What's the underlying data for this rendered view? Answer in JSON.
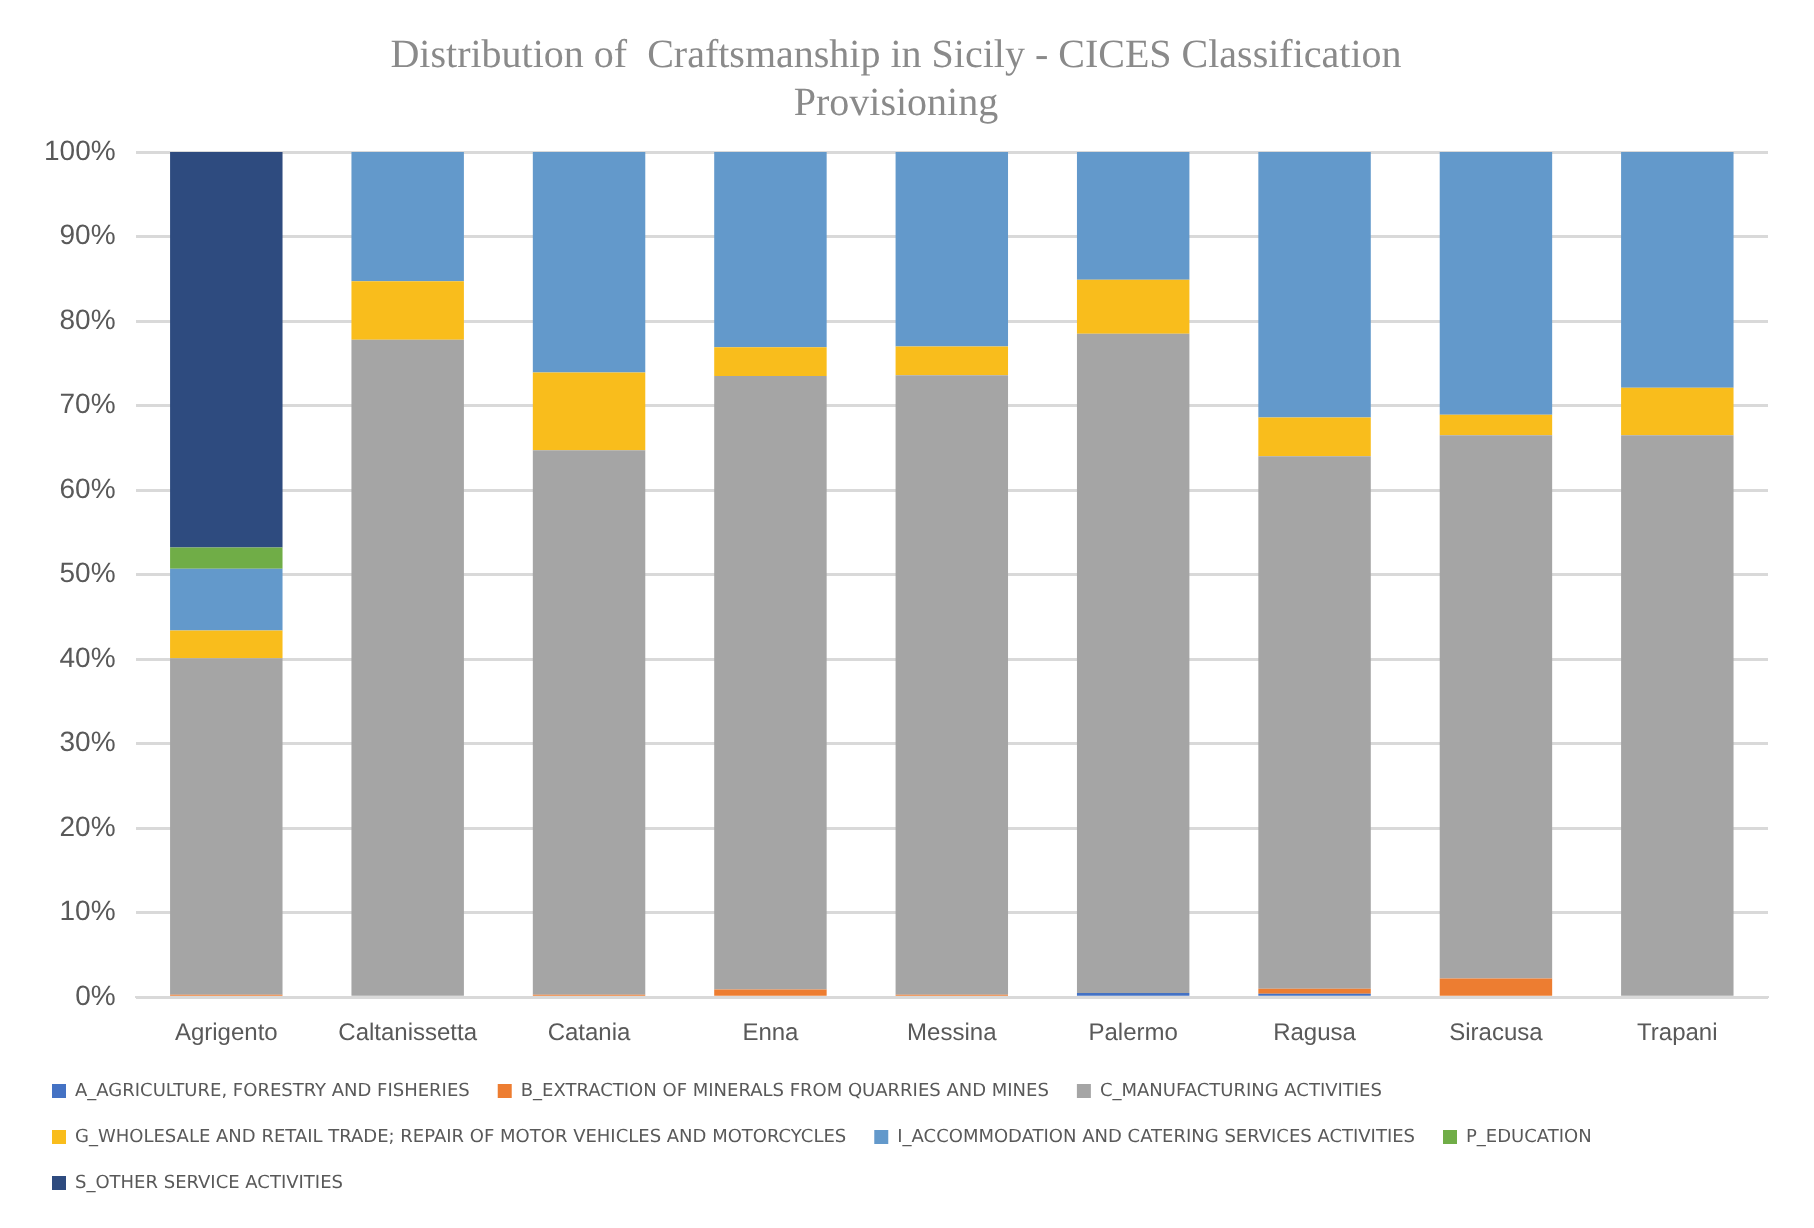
{
  "chart_data": {
    "type": "bar",
    "title": "Distribution of  Craftsmanship in Sicily - CICES Classification\nProvisioning",
    "stacked": true,
    "categories": [
      "Agrigento",
      "Caltanissetta",
      "Catania",
      "Enna",
      "Messina",
      "Palermo",
      "Ragusa",
      "Siracusa",
      "Trapani"
    ],
    "series": [
      {
        "name": "A_AGRICULTURE, FORESTRY AND FISHERIES",
        "color": "#4472c4",
        "values": [
          0,
          0,
          0,
          0,
          0,
          0.5,
          0.4,
          0,
          0
        ]
      },
      {
        "name": "B_EXTRACTION OF MINERALS FROM QUARRIES AND MINES",
        "color": "#ed7d31",
        "values": [
          0.3,
          0,
          0.3,
          0.9,
          0.3,
          0,
          0.6,
          2.2,
          0
        ]
      },
      {
        "name": "C_MANUFACTURING ACTIVITIES",
        "color": "#a5a5a5",
        "values": [
          39.8,
          77.8,
          64.4,
          72.6,
          73.3,
          78.0,
          63.0,
          64.3,
          66.5
        ]
      },
      {
        "name": "G_WHOLESALE AND RETAIL TRADE; REPAIR OF MOTOR VEHICLES AND MOTORCYCLES",
        "color": "#f9bd1c",
        "values": [
          3.3,
          6.9,
          9.2,
          3.4,
          3.4,
          6.4,
          4.6,
          2.4,
          5.6
        ]
      },
      {
        "name": "I_ACCOMMODATION AND CATERING SERVICES ACTIVITIES",
        "color": "#6399cb",
        "values": [
          7.3,
          15.3,
          26.1,
          23.1,
          23.1,
          15.1,
          31.4,
          31.1,
          27.9
        ]
      },
      {
        "name": "P_EDUCATION",
        "color": "#70ad47",
        "values": [
          2.5,
          0,
          0,
          0,
          0,
          0,
          0,
          0,
          0
        ]
      },
      {
        "name": "S_OTHER SERVICE ACTIVITIES",
        "color": "#2e4b7f",
        "values": [
          46.8,
          0,
          0,
          0,
          0,
          0,
          0,
          0,
          0
        ]
      }
    ],
    "ylim": [
      0,
      100
    ],
    "yticks": [
      {
        "value": 0,
        "label": "0%"
      },
      {
        "value": 10,
        "label": "10%"
      },
      {
        "value": 20,
        "label": "20%"
      },
      {
        "value": 30,
        "label": "30%"
      },
      {
        "value": 40,
        "label": "40%"
      },
      {
        "value": 50,
        "label": "50%"
      },
      {
        "value": 60,
        "label": "60%"
      },
      {
        "value": 70,
        "label": "70%"
      },
      {
        "value": 80,
        "label": "80%"
      },
      {
        "value": 90,
        "label": "90%"
      },
      {
        "value": 100,
        "label": "100%"
      }
    ],
    "grid": "y",
    "legend": "bottom"
  }
}
